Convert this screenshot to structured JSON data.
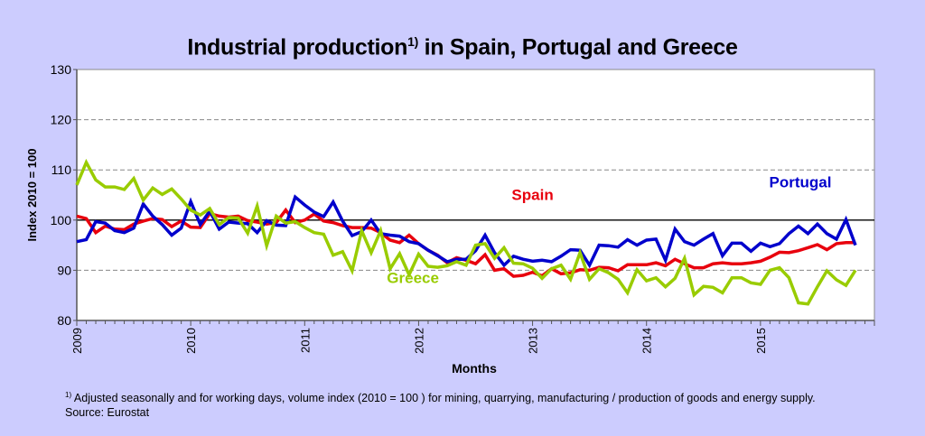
{
  "chart_data": {
    "type": "line",
    "title": "Industrial production",
    "title_sup": "1)",
    "title_rest": " in Spain, Portugal and Greece",
    "xlabel": "Months",
    "ylabel": "Index 2010 = 100",
    "ylim": [
      80,
      130
    ],
    "yticks": [
      80,
      90,
      100,
      110,
      120,
      130
    ],
    "reference_line": 100,
    "grid": "horizontal-dashed",
    "x_start": "2009-01",
    "x_end": "2015-11",
    "xtick_labels": [
      "2009",
      "2010",
      "2011",
      "2012",
      "2013",
      "2014",
      "2015"
    ],
    "series": [
      {
        "name": "Spain",
        "color": "#e8000d",
        "label_pos": [
          2013.0,
          104
        ],
        "values": [
          100.8,
          100.3,
          97.5,
          98.8,
          98.2,
          98.1,
          99.2,
          99.8,
          100.3,
          100.1,
          98.7,
          99.8,
          98.6,
          98.5,
          101.3,
          100.8,
          100.6,
          100.8,
          99.9,
          99.6,
          99.2,
          99.5,
          102.0,
          99.5,
          100.0,
          101.2,
          99.8,
          99.5,
          98.9,
          98.5,
          98.5,
          98.4,
          97.5,
          96.0,
          95.5,
          97.0,
          95.3,
          94.0,
          93.0,
          91.5,
          92.5,
          92.0,
          91.3,
          93.1,
          90.0,
          90.3,
          88.8,
          89.0,
          89.6,
          88.9,
          90.3,
          89.3,
          89.5,
          90.1,
          90.0,
          90.6,
          90.5,
          89.9,
          91.1,
          91.1,
          91.1,
          91.5,
          90.9,
          92.2,
          91.3,
          90.5,
          90.5,
          91.3,
          91.5,
          91.3,
          91.3,
          91.5,
          91.8,
          92.6,
          93.6,
          93.5,
          93.9,
          94.5,
          95.1,
          94.1,
          95.3,
          95.5,
          95.5
        ]
      },
      {
        "name": "Portugal",
        "color": "#0000cc",
        "label_pos": [
          2015.35,
          106.5
        ],
        "values": [
          95.7,
          96.1,
          99.7,
          99.4,
          97.9,
          97.5,
          98.4,
          103.2,
          100.8,
          99.1,
          97.0,
          98.4,
          103.7,
          99.1,
          101.8,
          98.2,
          99.6,
          99.4,
          99.3,
          97.5,
          99.9,
          99.0,
          98.9,
          104.6,
          103.0,
          101.6,
          100.7,
          103.6,
          99.8,
          96.9,
          97.7,
          100.0,
          97.3,
          97.0,
          96.8,
          95.7,
          95.3,
          94.0,
          92.9,
          91.7,
          92.2,
          92.2,
          93.9,
          97.0,
          93.5,
          91.0,
          92.8,
          92.2,
          91.8,
          92.0,
          91.7,
          92.8,
          94.1,
          94.0,
          91.0,
          95.0,
          94.9,
          94.6,
          96.1,
          95.0,
          96.0,
          96.2,
          92.0,
          98.2,
          95.7,
          95.0,
          96.2,
          97.3,
          92.9,
          95.4,
          95.4,
          93.8,
          95.4,
          94.7,
          95.3,
          97.3,
          98.8,
          97.3,
          99.2,
          97.3,
          96.2,
          100.1,
          95.0
        ]
      },
      {
        "name": "Greece",
        "color": "#99cc00",
        "label_pos": [
          2011.95,
          87.5
        ],
        "values": [
          107.0,
          111.5,
          108.0,
          106.6,
          106.6,
          106.1,
          108.3,
          104.0,
          106.4,
          105.1,
          106.2,
          104.2,
          102.0,
          101.0,
          102.3,
          99.1,
          100.5,
          100.4,
          97.4,
          102.8,
          94.9,
          100.8,
          99.4,
          99.7,
          98.5,
          97.5,
          97.2,
          93.0,
          93.7,
          89.9,
          97.9,
          93.5,
          97.9,
          90.3,
          93.3,
          89.1,
          93.2,
          90.8,
          90.6,
          90.9,
          91.7,
          91.0,
          95.0,
          95.3,
          92.4,
          94.5,
          91.4,
          91.3,
          90.4,
          88.4,
          90.3,
          91.0,
          88.2,
          93.5,
          88.2,
          90.3,
          89.5,
          88.2,
          85.5,
          90.1,
          87.9,
          88.5,
          86.7,
          88.4,
          92.4,
          85.1,
          86.8,
          86.6,
          85.5,
          88.5,
          88.5,
          87.5,
          87.2,
          90.0,
          90.5,
          88.5,
          83.5,
          83.3,
          86.7,
          89.9,
          88.1,
          87.0,
          90.0
        ]
      }
    ]
  },
  "footnote": {
    "marker": "1)",
    "text": " Adjusted seasonally and for working days, volume index (2010 = 100 ) for mining, quarrying, manufacturing / production of goods and energy supply.",
    "source": "Source: Eurostat"
  }
}
